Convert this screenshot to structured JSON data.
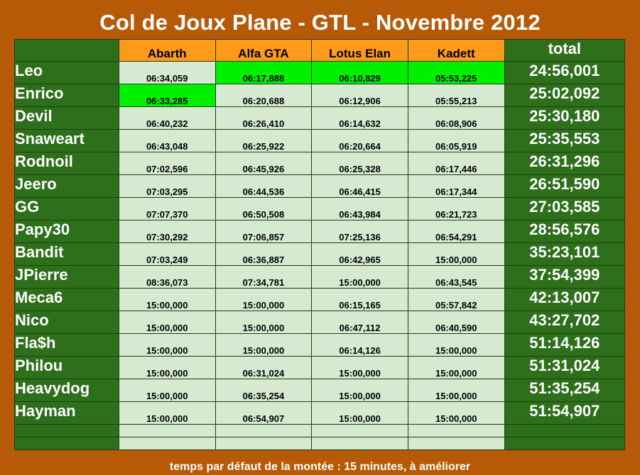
{
  "title": "Col de Joux Plane - GTL - Novembre 2012",
  "header": {
    "cars": [
      "Abarth",
      "Alfa GTA",
      "Lotus Elan",
      "Kadett"
    ],
    "total_label": "total"
  },
  "rows": [
    {
      "name": "Leo",
      "times": [
        "06:34,059",
        "06:17,888",
        "06:10,829",
        "05:53,225"
      ],
      "best": [
        false,
        true,
        true,
        true
      ],
      "total": "24:56,001"
    },
    {
      "name": "Enrico",
      "times": [
        "06:33,285",
        "06:20,688",
        "06:12,906",
        "05:55,213"
      ],
      "best": [
        true,
        false,
        false,
        false
      ],
      "total": "25:02,092"
    },
    {
      "name": "Devil",
      "times": [
        "06:40,232",
        "06:26,410",
        "06:14,632",
        "06:08,906"
      ],
      "best": [
        false,
        false,
        false,
        false
      ],
      "total": "25:30,180"
    },
    {
      "name": "Snaweart",
      "times": [
        "06:43,048",
        "06:25,922",
        "06:20,664",
        "06:05,919"
      ],
      "best": [
        false,
        false,
        false,
        false
      ],
      "total": "25:35,553"
    },
    {
      "name": "Rodnoil",
      "times": [
        "07:02,596",
        "06:45,926",
        "06:25,328",
        "06:17,446"
      ],
      "best": [
        false,
        false,
        false,
        false
      ],
      "total": "26:31,296"
    },
    {
      "name": "Jeero",
      "times": [
        "07:03,295",
        "06:44,536",
        "06:46,415",
        "06:17,344"
      ],
      "best": [
        false,
        false,
        false,
        false
      ],
      "total": "26:51,590"
    },
    {
      "name": "GG",
      "times": [
        "07:07,370",
        "06:50,508",
        "06:43,984",
        "06:21,723"
      ],
      "best": [
        false,
        false,
        false,
        false
      ],
      "total": "27:03,585"
    },
    {
      "name": "Papy30",
      "times": [
        "07:30,292",
        "07:06,857",
        "07:25,136",
        "06:54,291"
      ],
      "best": [
        false,
        false,
        false,
        false
      ],
      "total": "28:56,576"
    },
    {
      "name": "Bandit",
      "times": [
        "07:03,249",
        "06:36,887",
        "06:42,965",
        "15:00,000"
      ],
      "best": [
        false,
        false,
        false,
        false
      ],
      "total": "35:23,101"
    },
    {
      "name": "JPierre",
      "times": [
        "08:36,073",
        "07:34,781",
        "15:00,000",
        "06:43,545"
      ],
      "best": [
        false,
        false,
        false,
        false
      ],
      "total": "37:54,399"
    },
    {
      "name": "Meca6",
      "times": [
        "15:00,000",
        "15:00,000",
        "06:15,165",
        "05:57,842"
      ],
      "best": [
        false,
        false,
        false,
        false
      ],
      "total": "42:13,007"
    },
    {
      "name": "Nico",
      "times": [
        "15:00,000",
        "15:00,000",
        "06:47,112",
        "06:40,590"
      ],
      "best": [
        false,
        false,
        false,
        false
      ],
      "total": "43:27,702"
    },
    {
      "name": "Fla$h",
      "times": [
        "15:00,000",
        "15:00,000",
        "06:14,126",
        "15:00,000"
      ],
      "best": [
        false,
        false,
        false,
        false
      ],
      "total": "51:14,126"
    },
    {
      "name": "Philou",
      "times": [
        "15:00,000",
        "06:31,024",
        "15:00,000",
        "15:00,000"
      ],
      "best": [
        false,
        false,
        false,
        false
      ],
      "total": "51:31,024"
    },
    {
      "name": "Heavydog",
      "times": [
        "15:00,000",
        "06:35,254",
        "15:00,000",
        "15:00,000"
      ],
      "best": [
        false,
        false,
        false,
        false
      ],
      "total": "51:35,254"
    },
    {
      "name": "Hayman",
      "times": [
        "15:00,000",
        "06:54,907",
        "15:00,000",
        "15:00,000"
      ],
      "best": [
        false,
        false,
        false,
        false
      ],
      "total": "51:54,907"
    }
  ],
  "empty_rows": 2,
  "footer": "temps par défaut de la montée : 15 minutes, à améliorer",
  "colors": {
    "background": "#b65a07",
    "name_cell": "#2e6f1c",
    "header_car": "#ff9a1a",
    "time_cell": "#d6ead2",
    "best_time": "#00f000"
  }
}
